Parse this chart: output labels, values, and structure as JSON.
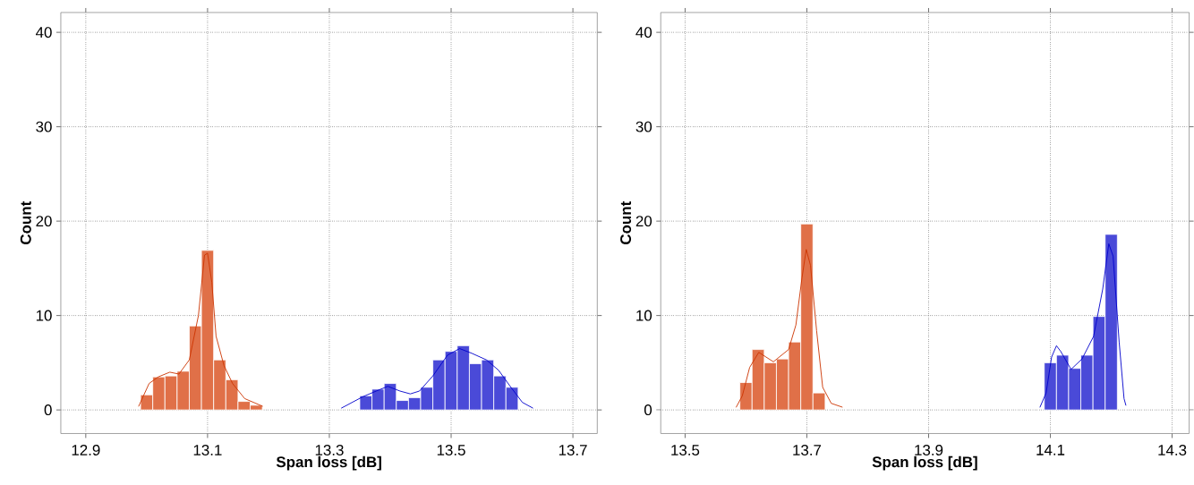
{
  "chart_data": [
    {
      "type": "histogram",
      "xlabel": "Span loss [dB]",
      "ylabel": "Count",
      "xlim": [
        12.859,
        13.74
      ],
      "ylim": [
        -2.5,
        42.1
      ],
      "xticks": [
        12.9,
        13.1,
        13.3,
        13.5,
        13.7
      ],
      "yticks": [
        0,
        10,
        20,
        30,
        40
      ],
      "grid": true,
      "series": [
        {
          "type": "histogram",
          "color": "#e07048",
          "bins": [
            12.99,
            13.01,
            13.03,
            13.05,
            13.07,
            13.09,
            13.11,
            13.13,
            13.15,
            13.17,
            13.19
          ],
          "values": [
            1.6,
            3.5,
            3.6,
            4.1,
            8.9,
            16.9,
            5.3,
            3.2,
            0.9,
            0.5
          ]
        },
        {
          "type": "histogram",
          "color": "#4a4ad8",
          "bins": [
            13.35,
            13.37,
            13.39,
            13.41,
            13.43,
            13.45,
            13.47,
            13.49,
            13.51,
            13.53,
            13.55,
            13.57,
            13.59,
            13.61
          ],
          "values": [
            1.5,
            2.2,
            2.8,
            1.0,
            1.3,
            2.4,
            5.3,
            6.2,
            6.8,
            4.9,
            5.3,
            3.6,
            2.4
          ]
        },
        {
          "type": "line",
          "color": "#cc3300",
          "x": [
            12.987,
            13.004,
            13.019,
            13.038,
            13.053,
            13.07,
            13.085,
            13.095,
            13.1,
            13.107,
            13.114,
            13.127,
            13.141,
            13.161,
            13.19
          ],
          "values": [
            0.4,
            2.8,
            3.5,
            4.0,
            3.8,
            5.3,
            10.0,
            16.4,
            16.6,
            13.5,
            7.8,
            4.7,
            2.8,
            1.2,
            0.4
          ]
        },
        {
          "type": "line",
          "color": "#0000cc",
          "x": [
            13.32,
            13.355,
            13.377,
            13.396,
            13.416,
            13.433,
            13.448,
            13.47,
            13.494,
            13.514,
            13.534,
            13.558,
            13.578,
            13.597,
            13.617,
            13.634
          ],
          "values": [
            0.2,
            1.4,
            2.0,
            2.5,
            2.0,
            1.7,
            2.0,
            3.6,
            5.8,
            6.5,
            6.0,
            5.3,
            4.2,
            2.5,
            0.8,
            0.2
          ]
        }
      ]
    },
    {
      "type": "histogram",
      "xlabel": "Span loss [dB]",
      "ylabel": "Count",
      "xlim": [
        13.46,
        14.328
      ],
      "ylim": [
        -2.5,
        42.1
      ],
      "xticks": [
        13.5,
        13.7,
        13.9,
        14.1,
        14.3
      ],
      "yticks": [
        0,
        10,
        20,
        30,
        40
      ],
      "grid": true,
      "series": [
        {
          "type": "histogram",
          "color": "#e07048",
          "bins": [
            13.59,
            13.61,
            13.63,
            13.65,
            13.67,
            13.69,
            13.71,
            13.73
          ],
          "values": [
            2.9,
            6.4,
            5.0,
            5.4,
            7.2,
            19.7,
            1.8
          ]
        },
        {
          "type": "histogram",
          "color": "#4a4ad8",
          "bins": [
            14.09,
            14.11,
            14.13,
            14.15,
            14.17,
            14.19,
            14.21
          ],
          "values": [
            5.0,
            5.8,
            4.4,
            5.8,
            9.9,
            18.6
          ]
        },
        {
          "type": "line",
          "color": "#cc3300",
          "x": [
            13.584,
            13.594,
            13.606,
            13.621,
            13.645,
            13.67,
            13.682,
            13.692,
            13.699,
            13.706,
            13.716,
            13.726,
            13.74,
            13.758
          ],
          "values": [
            0.3,
            1.5,
            4.5,
            6.1,
            5.1,
            6.4,
            9.0,
            14.0,
            17.0,
            15.3,
            8.4,
            2.4,
            0.7,
            0.3
          ]
        },
        {
          "type": "line",
          "color": "#0000cc",
          "x": [
            14.083,
            14.093,
            14.102,
            14.11,
            14.117,
            14.134,
            14.152,
            14.171,
            14.186,
            14.196,
            14.203,
            14.213,
            14.221,
            14.224
          ],
          "values": [
            0.3,
            1.8,
            5.6,
            6.8,
            6.2,
            4.3,
            5.4,
            7.8,
            12.8,
            17.6,
            16.3,
            7.2,
            1.2,
            0.5
          ]
        }
      ]
    }
  ]
}
